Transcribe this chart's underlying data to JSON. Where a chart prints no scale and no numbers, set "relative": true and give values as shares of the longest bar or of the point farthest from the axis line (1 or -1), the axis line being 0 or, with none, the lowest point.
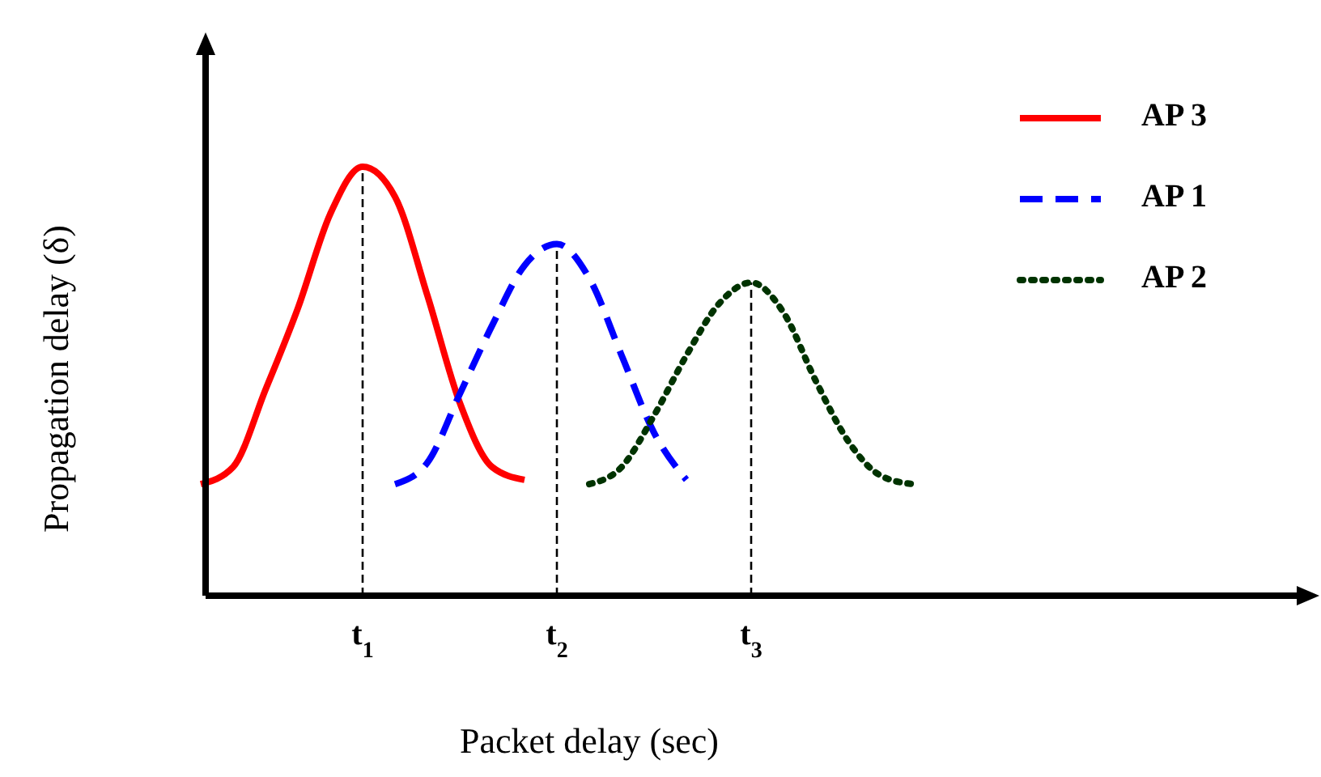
{
  "chart_data": {
    "type": "line",
    "relative": true,
    "xlabel": "Packet delay (sec)",
    "ylabel": "Propagation delay (δ)",
    "categories": [
      null,
      null,
      null,
      null,
      null,
      "t$_{1}$",
      null,
      null,
      null,
      null,
      null,
      "t$_{2}$",
      null,
      null,
      null,
      null,
      null,
      "t$_{3}$",
      null,
      null,
      null,
      null,
      null,
      null,
      null,
      null,
      null,
      null,
      null,
      null,
      null,
      null,
      null,
      null,
      null
    ],
    "legend": "top right",
    "marker": "none",
    "ref_lines": [
      {
        "axis": "x",
        "value": "t$_{1}$",
        "color": "#000000",
        "line_style": "dashed"
      },
      {
        "axis": "x",
        "value": "t$_{2}$",
        "color": "#000000",
        "line_style": "dashed"
      },
      {
        "axis": "x",
        "value": "t$_{3}$",
        "color": "#000000",
        "line_style": "dashed"
      }
    ],
    "series": [
      {
        "name": "AP 3",
        "color": "#ff0000",
        "line_style": "solid",
        "values": [
          0.26,
          0.3,
          0.48,
          0.67,
          0.89,
          1,
          0.93,
          0.7,
          0.45,
          0.3,
          0.27,
          null,
          null,
          null,
          null,
          null,
          null,
          null,
          null,
          null,
          null,
          null,
          null,
          null,
          null,
          null,
          null,
          null,
          null,
          null,
          null,
          null,
          null,
          null,
          null
        ]
      },
      {
        "name": "AP 1",
        "color": "#0000ff",
        "line_style": "dashed",
        "values": [
          null,
          null,
          null,
          null,
          null,
          null,
          0.26,
          0.31,
          0.47,
          0.63,
          0.77,
          0.82,
          0.74,
          0.56,
          0.38,
          0.27,
          null,
          null,
          null,
          null,
          null,
          null,
          null,
          null,
          null,
          null,
          null,
          null,
          null,
          null,
          null,
          null,
          null,
          null,
          null
        ]
      },
      {
        "name": "AP 2",
        "color": "#003300",
        "line_style": "dotted",
        "values": [
          null,
          null,
          null,
          null,
          null,
          null,
          null,
          null,
          null,
          null,
          null,
          null,
          0.26,
          0.3,
          0.42,
          0.56,
          0.68,
          0.73,
          0.66,
          0.5,
          0.36,
          0.28,
          0.26,
          null,
          null,
          null,
          null,
          null,
          null,
          null,
          null,
          null,
          null,
          null,
          null
        ]
      }
    ]
  }
}
